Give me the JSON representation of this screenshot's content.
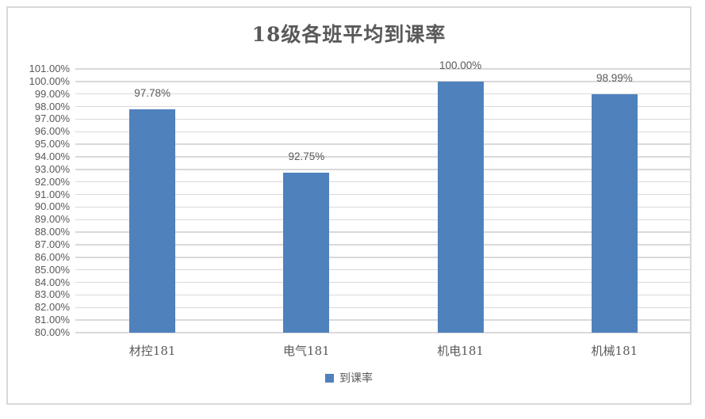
{
  "chart_data": {
    "type": "bar",
    "title": "18级各班平均到课率",
    "categories": [
      "材控181",
      "电气181",
      "机电181",
      "机械181"
    ],
    "series": [
      {
        "name": "到课率",
        "values": [
          97.78,
          92.75,
          100.0,
          98.99
        ],
        "color": "#4f81bd"
      }
    ],
    "data_labels": [
      "97.78%",
      "92.75%",
      "100.00%",
      "98.99%"
    ],
    "yticks": [
      "101.00%",
      "100.00%",
      "99.00%",
      "98.00%",
      "97.00%",
      "96.00%",
      "95.00%",
      "94.00%",
      "93.00%",
      "92.00%",
      "91.00%",
      "90.00%",
      "89.00%",
      "88.00%",
      "87.00%",
      "86.00%",
      "85.00%",
      "84.00%",
      "83.00%",
      "82.00%",
      "81.00%",
      "80.00%"
    ],
    "ylim": [
      80,
      101
    ],
    "ytick_step": 1,
    "grid": true,
    "legend_position": "bottom",
    "colors": {
      "bar": "#4f81bd",
      "gridline": "#d9d9d9",
      "frame_border": "#d9d9d9",
      "text": "#595959"
    }
  }
}
